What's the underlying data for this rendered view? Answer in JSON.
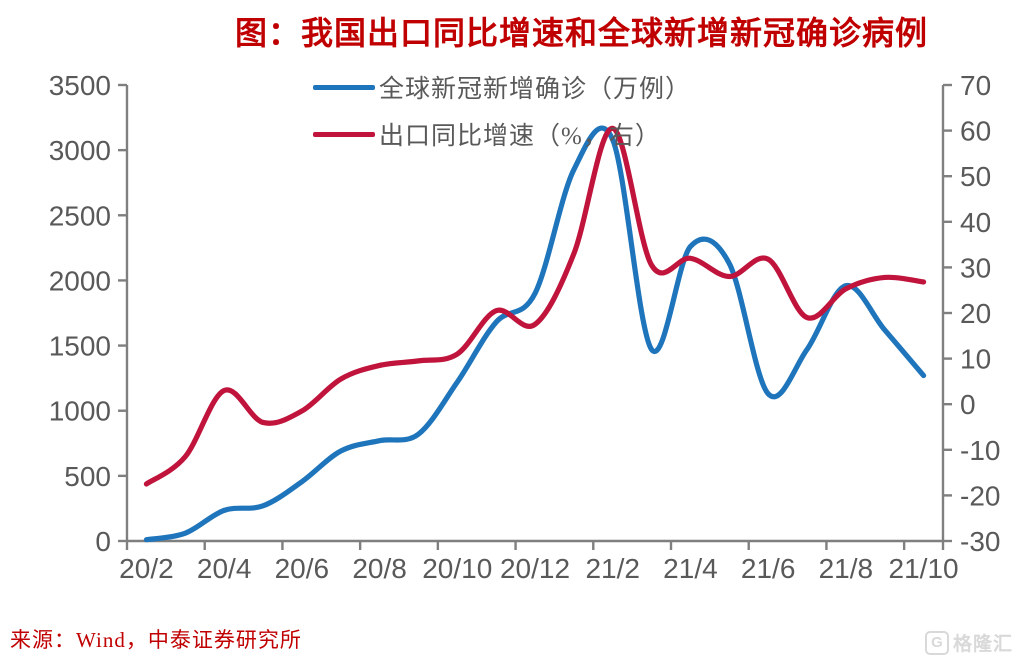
{
  "title": "图：我国出口同比增速和全球新增新冠确诊病例",
  "legend": [
    {
      "label": "全球新冠新增确诊（万例）",
      "color": "#1F75BB"
    },
    {
      "label": "出口同比增速（%，右）",
      "color": "#C0143C"
    }
  ],
  "footer": {
    "source": "来源：Wind，中泰证券研究所"
  },
  "watermark": {
    "icon": "G",
    "text": "格隆汇"
  },
  "colors": {
    "title_red": "#C00000",
    "axis_line": "#7F7F7F",
    "axis_text": "#595959",
    "series_blue": "#1F75BB",
    "series_red": "#C0143C"
  },
  "chart_data": {
    "type": "line",
    "x": [
      "20/2",
      "20/3",
      "20/4",
      "20/5",
      "20/6",
      "20/7",
      "20/8",
      "20/9",
      "20/10",
      "20/11",
      "20/12",
      "21/1",
      "21/2",
      "21/3",
      "21/4",
      "21/5",
      "21/6",
      "21/7",
      "21/8",
      "21/9",
      "21/10"
    ],
    "x_tick_labels": [
      "20/2",
      "20/4",
      "20/6",
      "20/8",
      "20/10",
      "20/12",
      "21/2",
      "21/4",
      "21/6",
      "21/8",
      "21/10"
    ],
    "series": [
      {
        "name": "全球新冠新增确诊（万例）",
        "axis": "left",
        "color": "#1F75BB",
        "values": [
          10,
          60,
          235,
          270,
          455,
          690,
          770,
          820,
          1220,
          1680,
          1900,
          2850,
          3080,
          1470,
          2260,
          2130,
          1130,
          1470,
          1960,
          1620,
          1270
        ]
      },
      {
        "name": "出口同比增速（%，右）",
        "axis": "right",
        "color": "#C0143C",
        "values": [
          -17.5,
          -11.5,
          3,
          -4,
          -1.5,
          5.5,
          8.5,
          9.5,
          11,
          20.5,
          17.5,
          33,
          60.5,
          30.5,
          32,
          28,
          31.8,
          19,
          25.3,
          27.8,
          26.8
        ]
      }
    ],
    "left_axis": {
      "min": 0,
      "max": 3500,
      "step": 500,
      "ticks": [
        "0",
        "500",
        "1000",
        "1500",
        "2000",
        "2500",
        "3000",
        "3500"
      ]
    },
    "right_axis": {
      "min": -30,
      "max": 70,
      "step": 10,
      "ticks": [
        "-30",
        "-20",
        "-10",
        "0",
        "10",
        "20",
        "30",
        "40",
        "50",
        "60",
        "70"
      ]
    },
    "grid": false,
    "legend_position": "top-center",
    "smooth": true
  }
}
